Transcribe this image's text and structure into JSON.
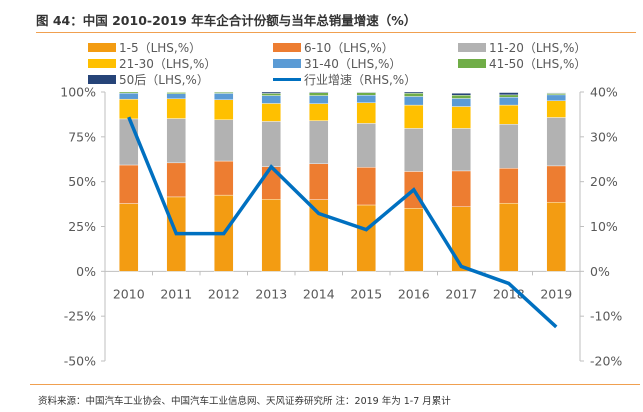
{
  "title": "图 44：中国 2010-2019 年车企合计份额与当年总销量增速（%）",
  "footnote": "资料来源：中国汽车工业协会、中国汽车工业信息网、天风证券研究所   注：2019 年为 1-7 月累计",
  "chart_data": {
    "type": "bar",
    "stacked": true,
    "title": "中国 2010-2019 年车企合计份额与当年总销量增速（%）",
    "categories": [
      "2010",
      "2011",
      "2012",
      "2013",
      "2014",
      "2015",
      "2016",
      "2017",
      "2018",
      "2019"
    ],
    "left_axis": {
      "ylim": [
        -50,
        100
      ],
      "ticks": [
        "100%",
        "75%",
        "50%",
        "25%",
        "0%",
        "-25%",
        "-50%"
      ],
      "tick_values": [
        100,
        75,
        50,
        25,
        0,
        -25,
        -50
      ]
    },
    "right_axis": {
      "ylim": [
        -20,
        40
      ],
      "ticks": [
        "40%",
        "30%",
        "20%",
        "10%",
        "0%",
        "-10%",
        "-20%"
      ],
      "tick_values": [
        40,
        30,
        20,
        10,
        0,
        -10,
        -20
      ]
    },
    "legend_position": "top",
    "series": [
      {
        "name": "1-5（LHS,%）",
        "color": "#F39C12",
        "axis": "left",
        "values": [
          37.8,
          41.5,
          42.5,
          40.2,
          40.0,
          37.0,
          35.2,
          36.0,
          38.0,
          38.5
        ]
      },
      {
        "name": "6-10（LHS,%）",
        "color": "#ED7D31",
        "axis": "left",
        "values": [
          21.5,
          19.0,
          19.0,
          18.2,
          20.0,
          21.0,
          20.5,
          20.0,
          19.5,
          20.3
        ]
      },
      {
        "name": "11-20（LHS,%）",
        "color": "#B2B2B2",
        "axis": "left",
        "values": [
          25.7,
          24.7,
          23.0,
          25.2,
          24.0,
          24.5,
          24.0,
          23.7,
          24.5,
          27.0
        ]
      },
      {
        "name": "21-30（LHS,%）",
        "color": "#FFC000",
        "axis": "left",
        "values": [
          11.0,
          11.0,
          11.2,
          10.0,
          9.5,
          11.5,
          13.0,
          12.2,
          10.7,
          9.3
        ]
      },
      {
        "name": "31-40（LHS,%）",
        "color": "#5B9BD5",
        "axis": "left",
        "values": [
          3.3,
          2.8,
          3.5,
          4.4,
          4.5,
          4.2,
          4.8,
          4.5,
          4.4,
          3.3
        ]
      },
      {
        "name": "41-50（LHS,%）",
        "color": "#70AD47",
        "axis": "left",
        "values": [
          0.7,
          0.8,
          0.7,
          1.2,
          1.6,
          1.5,
          1.8,
          1.8,
          1.3,
          0.8
        ]
      },
      {
        "name": "50后（LHS,%）",
        "color": "#264478",
        "axis": "left",
        "values": [
          0.0,
          0.2,
          0.1,
          0.8,
          0.4,
          0.3,
          0.7,
          1.1,
          1.3,
          0.3
        ]
      }
    ],
    "line_series": {
      "name": "行业增速（RHS,%）",
      "color": "#0070C0",
      "axis": "right",
      "values": [
        34.4,
        8.4,
        8.4,
        23.3,
        12.9,
        9.3,
        18.2,
        1.1,
        -2.7,
        -12.4
      ]
    }
  }
}
